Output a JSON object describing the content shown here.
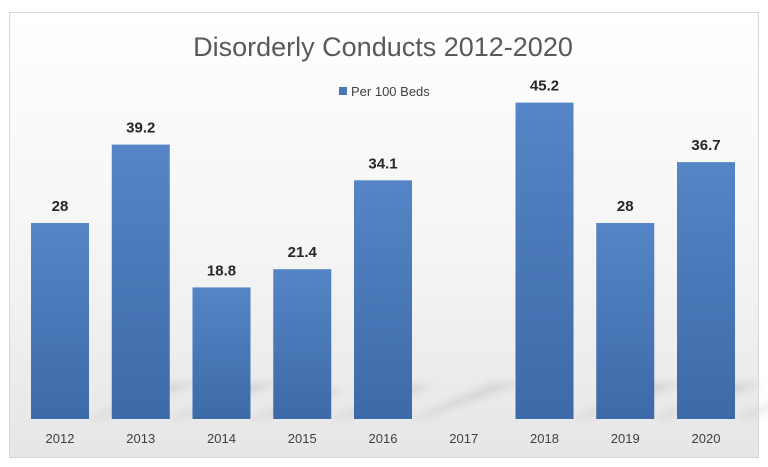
{
  "chart_data": {
    "type": "bar",
    "title": "Disorderly Conducts 2012-2020",
    "categories": [
      "2012",
      "2013",
      "2014",
      "2015",
      "2016",
      "2017",
      "2018",
      "2019",
      "2020"
    ],
    "series": [
      {
        "name": "Per 100 Beds",
        "values": [
          28,
          39.2,
          18.8,
          21.4,
          34.1,
          null,
          45.2,
          28,
          36.7
        ],
        "data_labels": [
          "28",
          "39.2",
          "18.8",
          "21.4",
          "34.1",
          "",
          "45.2",
          "28",
          "36.7"
        ],
        "color": "#4a78b6"
      }
    ],
    "xlabel": "",
    "ylabel": "",
    "ylim": [
      0,
      50
    ],
    "grid": false,
    "legend_position": "top"
  }
}
